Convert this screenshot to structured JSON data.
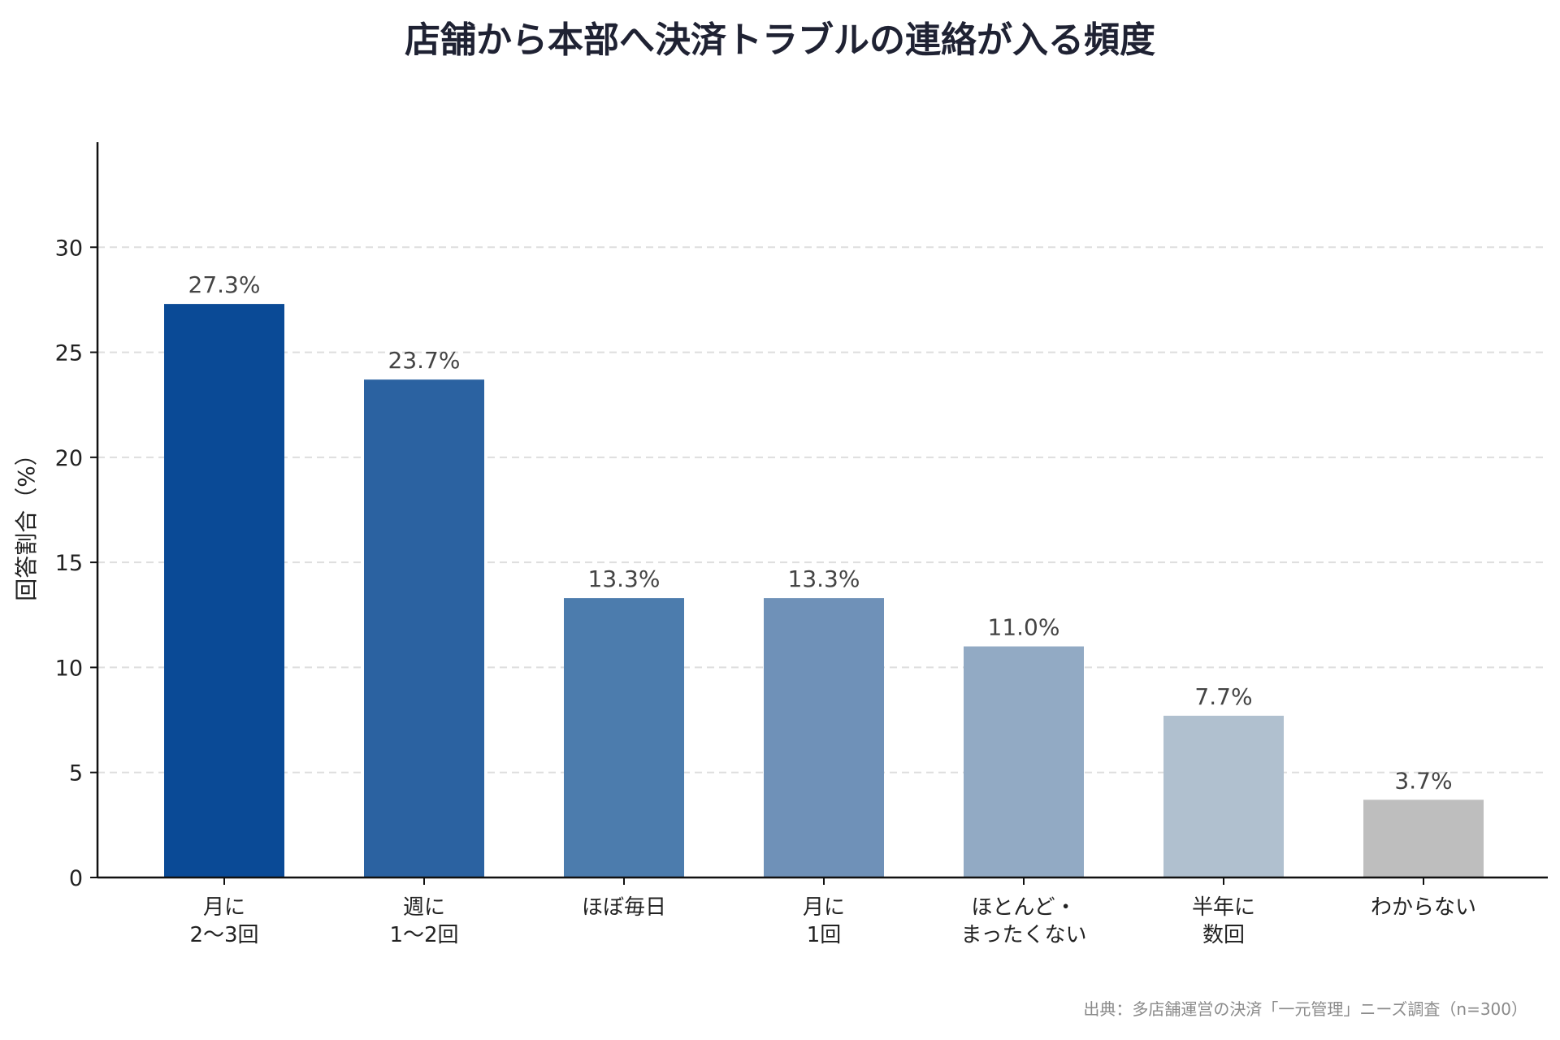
{
  "chart_data": {
    "type": "bar",
    "title": "店舗から本部へ決済トラブルの連絡が入る頻度",
    "ylabel": "回答割合（%）",
    "xlabel": "",
    "categories": [
      [
        "月に",
        "2〜3回"
      ],
      [
        "週に",
        "1〜2回"
      ],
      [
        "ほぼ毎日"
      ],
      [
        "月に",
        "1回"
      ],
      [
        "ほとんど・",
        "まったくない"
      ],
      [
        "半年に",
        "数回"
      ],
      [
        "わからない"
      ]
    ],
    "values": [
      27.3,
      23.7,
      13.3,
      13.3,
      11.0,
      7.7,
      3.7
    ],
    "value_labels": [
      "27.3%",
      "23.7%",
      "13.3%",
      "13.3%",
      "11.0%",
      "7.7%",
      "3.7%"
    ],
    "colors": [
      "#0a4a96",
      "#2b62a1",
      "#4c7cad",
      "#6f91b8",
      "#92aac4",
      "#b0c0cf",
      "#bebebe"
    ],
    "ylim": [
      0,
      35
    ],
    "yticks": [
      0,
      5,
      10,
      15,
      20,
      25,
      30
    ],
    "grid": true,
    "source": "出典：多店舗運営の決済「一元管理」ニーズ調査（n=300）"
  }
}
